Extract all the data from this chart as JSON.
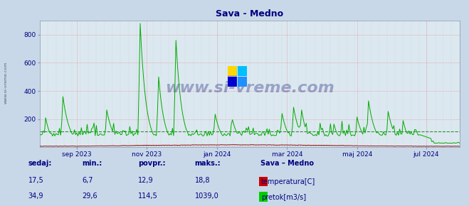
{
  "title": "Sava - Medno",
  "title_color": "#000080",
  "bg_color": "#c8d8e8",
  "plot_bg_color": "#dce8f0",
  "grid_color_pink": "#e08080",
  "grid_color_gray": "#b0b8c8",
  "ylim": [
    0,
    900
  ],
  "yticks": [
    200,
    400,
    600,
    800
  ],
  "x_tick_labels": [
    "sep 2023",
    "nov 2023",
    "jan 2024",
    "mar 2024",
    "maj 2024",
    "jul 2024"
  ],
  "x_tick_positions": [
    0.088,
    0.255,
    0.422,
    0.589,
    0.756,
    0.92
  ],
  "temp_color": "#880000",
  "flow_color": "#00aa00",
  "flow_avg_color": "#007700",
  "temp_avg_color": "#880000",
  "watermark": "www.si-vreme.com",
  "watermark_color": "#000066",
  "watermark_alpha": 0.3,
  "legend_title": "Sava – Medno",
  "legend_color1": "#cc0000",
  "legend_color2": "#00cc00",
  "legend_label1": "temperatura[C]",
  "legend_label2": "pretok[m3/s]",
  "stats_labels": [
    "sedaj:",
    "min.:",
    "povpr.:",
    "maks.:"
  ],
  "stats_temp": [
    17.5,
    6.7,
    12.9,
    18.8
  ],
  "stats_flow": [
    34.9,
    29.6,
    114.5,
    1039.0
  ],
  "font_color": "#000080",
  "temp_avg_value": 12.9,
  "flow_avg_value": 114.5,
  "left_label": "www.si-vreme.com"
}
